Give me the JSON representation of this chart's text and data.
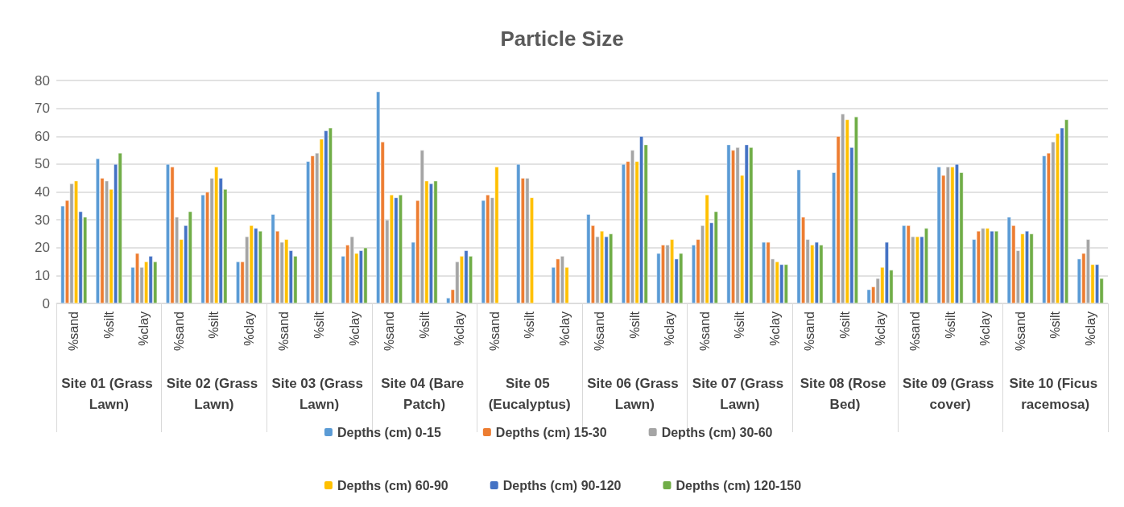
{
  "chart_data": {
    "type": "bar",
    "title": "Particle Size",
    "categories": [
      "%sand",
      "%silt",
      "%clay",
      "%sand",
      "%silt",
      "%clay",
      "%sand",
      "%silt",
      "%clay",
      "%sand",
      "%silt",
      "%clay",
      "%sand",
      "%silt",
      "%clay",
      "%sand",
      "%silt",
      "%clay",
      "%sand",
      "%silt",
      "%clay",
      "%sand",
      "%silt",
      "%clay",
      "%sand",
      "%silt",
      "%clay",
      "%sand",
      "%silt",
      "%clay"
    ],
    "annotations": [
      "Site 01 (Grass Lawn)",
      "Site 02 (Grass Lawn)",
      "Site 03 (Grass Lawn)",
      "Site 04 (Bare Patch)",
      "Site 05 (Eucalyptus)",
      "Site 06 (Grass Lawn)",
      "Site 07 (Grass Lawn)",
      "Site 08 (Rose Bed)",
      "Site 09 (Grass cover)",
      "Site 10 (Ficus racemosa)"
    ],
    "series": [
      {
        "name": "Depths (cm) 0-15",
        "color": "#5b9bd5",
        "values": [
          35,
          52,
          13,
          50,
          39,
          15,
          32,
          51,
          17,
          76,
          22,
          2,
          37,
          50,
          13,
          32,
          50,
          18,
          21,
          57,
          22,
          48,
          47,
          5,
          28,
          49,
          23,
          31,
          53,
          16
        ]
      },
      {
        "name": "Depths (cm) 15-30",
        "color": "#ed7d31",
        "values": [
          37,
          45,
          18,
          49,
          40,
          15,
          26,
          53,
          21,
          58,
          37,
          5,
          39,
          45,
          16,
          28,
          51,
          21,
          23,
          55,
          22,
          31,
          60,
          6,
          28,
          46,
          26,
          28,
          54,
          18
        ]
      },
      {
        "name": "Depths (cm) 30-60",
        "color": "#a5a5a5",
        "values": [
          43,
          44,
          13,
          31,
          45,
          24,
          22,
          54,
          24,
          30,
          55,
          15,
          38,
          45,
          17,
          24,
          55,
          21,
          28,
          56,
          16,
          23,
          68,
          9,
          24,
          49,
          27,
          19,
          58,
          23
        ]
      },
      {
        "name": "Depths (cm) 60-90",
        "color": "#ffc000",
        "values": [
          44,
          41,
          15,
          23,
          49,
          28,
          23,
          59,
          18,
          39,
          44,
          17,
          49,
          38,
          13,
          26,
          51,
          23,
          39,
          46,
          15,
          21,
          66,
          13,
          24,
          49,
          27,
          25,
          61,
          14
        ]
      },
      {
        "name": "Depths (cm) 90-120",
        "color": "#4472c4",
        "values": [
          33,
          50,
          17,
          28,
          45,
          27,
          19,
          62,
          19,
          38,
          43,
          19,
          null,
          null,
          null,
          24,
          60,
          16,
          29,
          57,
          14,
          22,
          56,
          22,
          24,
          50,
          26,
          26,
          63,
          14
        ]
      },
      {
        "name": "Depths (cm) 120-150",
        "color": "#70ad47",
        "values": [
          31,
          54,
          15,
          33,
          41,
          26,
          17,
          63,
          20,
          39,
          44,
          17,
          null,
          null,
          null,
          25,
          57,
          18,
          33,
          56,
          14,
          21,
          67,
          12,
          27,
          47,
          26,
          25,
          66,
          9
        ]
      }
    ],
    "ylim": [
      0,
      80
    ],
    "yticks": [
      0,
      10,
      20,
      30,
      40,
      50,
      60,
      70,
      80
    ],
    "grid": "y",
    "legend": "bottom"
  }
}
